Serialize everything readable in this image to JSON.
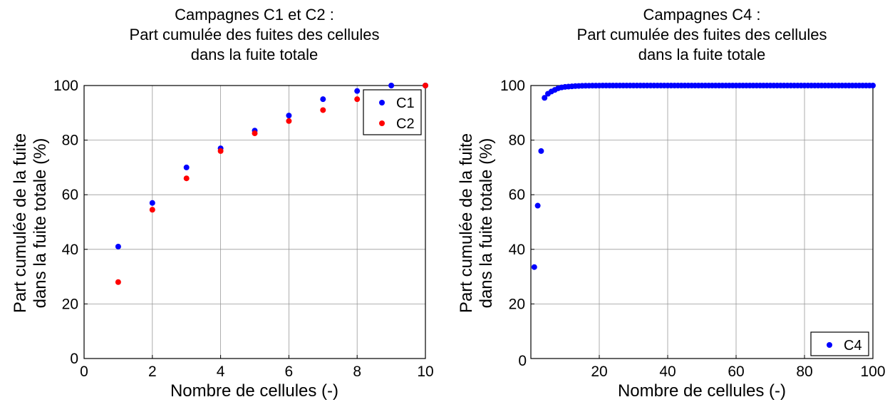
{
  "chart_data": [
    {
      "type": "scatter",
      "title": [
        "Campagnes C1 et C2 :",
        "Part cumulée des fuites des cellules",
        "dans la fuite totale"
      ],
      "xlabel": "Nombre de cellules (-)",
      "ylabel": [
        "Part cumulée de la fuite",
        "dans la fuite totale (%)"
      ],
      "xlim": [
        0,
        10
      ],
      "ylim": [
        0,
        100
      ],
      "xticks": [
        0,
        2,
        4,
        6,
        8,
        10
      ],
      "yticks": [
        0,
        20,
        40,
        60,
        80,
        100
      ],
      "grid": true,
      "legend_position": "top-right",
      "series": [
        {
          "name": "C1",
          "color": "#0000ff",
          "x": [
            1,
            2,
            3,
            4,
            5,
            6,
            7,
            8,
            9,
            10
          ],
          "y": [
            41,
            57,
            70,
            77,
            83.5,
            89,
            95,
            98,
            100,
            100
          ]
        },
        {
          "name": "C2",
          "color": "#ff0000",
          "x": [
            1,
            2,
            3,
            4,
            5,
            6,
            7,
            8,
            10
          ],
          "y": [
            28,
            54.5,
            66,
            76,
            82.5,
            87,
            91,
            95,
            100
          ]
        }
      ]
    },
    {
      "type": "scatter",
      "title": [
        "Campagnes C4 :",
        "Part cumulée des fuites des cellules",
        "dans la fuite totale"
      ],
      "xlabel": "Nombre de cellules (-)",
      "ylabel": [
        "Part cumulée de la fuite",
        "dans la fuite totale (%)"
      ],
      "xlim": [
        0,
        100
      ],
      "ylim": [
        0,
        100
      ],
      "xticks": [
        20,
        40,
        60,
        80,
        100
      ],
      "yticks": [
        0,
        20,
        40,
        60,
        80,
        100
      ],
      "grid": true,
      "legend_position": "bottom-right",
      "series": [
        {
          "name": "C4",
          "color": "#0000ff",
          "x": [
            1,
            2,
            3,
            4,
            5,
            6,
            7,
            8,
            9,
            10,
            11,
            12,
            13,
            14,
            15,
            16,
            17,
            18,
            19,
            20,
            21,
            22,
            23,
            24,
            25,
            26,
            27,
            28,
            29,
            30,
            31,
            32,
            33,
            34,
            35,
            36,
            37,
            38,
            39,
            40,
            41,
            42,
            43,
            44,
            45,
            46,
            47,
            48,
            49,
            50,
            51,
            52,
            53,
            54,
            55,
            56,
            57,
            58,
            59,
            60,
            61,
            62,
            63,
            64,
            65,
            66,
            67,
            68,
            69,
            70,
            71,
            72,
            73,
            74,
            75,
            76,
            77,
            78,
            79,
            80,
            81,
            82,
            83,
            84,
            85,
            86,
            87,
            88,
            89,
            90,
            91,
            92,
            93,
            94,
            95,
            96,
            97,
            98,
            99,
            100
          ],
          "y": [
            33.5,
            56,
            76,
            95.5,
            97,
            97.8,
            98.4,
            99,
            99.3,
            99.5,
            99.6,
            99.7,
            99.8,
            99.85,
            99.9,
            99.92,
            99.94,
            99.96,
            99.97,
            99.98,
            100,
            100,
            100,
            100,
            100,
            100,
            100,
            100,
            100,
            100,
            100,
            100,
            100,
            100,
            100,
            100,
            100,
            100,
            100,
            100,
            100,
            100,
            100,
            100,
            100,
            100,
            100,
            100,
            100,
            100,
            100,
            100,
            100,
            100,
            100,
            100,
            100,
            100,
            100,
            100,
            100,
            100,
            100,
            100,
            100,
            100,
            100,
            100,
            100,
            100,
            100,
            100,
            100,
            100,
            100,
            100,
            100,
            100,
            100,
            100,
            100,
            100,
            100,
            100,
            100,
            100,
            100,
            100,
            100,
            100,
            100,
            100,
            100,
            100,
            100,
            100,
            100,
            100,
            100,
            100
          ]
        }
      ]
    }
  ]
}
